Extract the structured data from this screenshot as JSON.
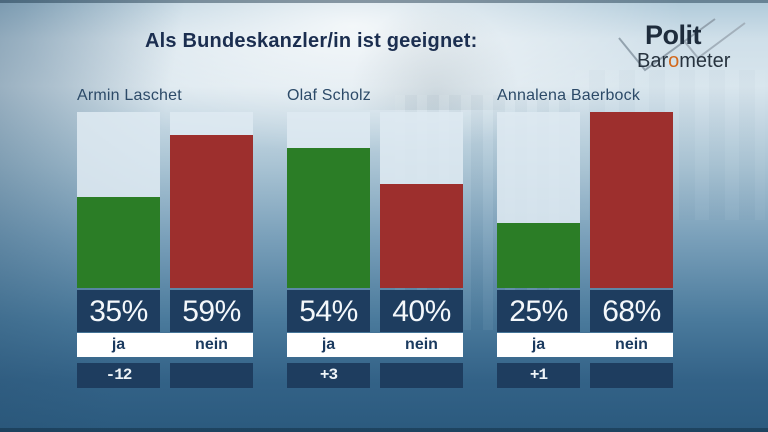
{
  "header": {
    "title": "Als Bundeskanzler/in ist geeignet:"
  },
  "logo": {
    "line1": "Polit",
    "line2_pre": "Bar",
    "line2_o": "o",
    "line2_post": "meter",
    "accent_color": "#d2691e",
    "check_color": "#93a2ae"
  },
  "chart_data": {
    "type": "bar",
    "title": "Als Bundeskanzler/in ist geeignet:",
    "series_labels": [
      "ja",
      "nein"
    ],
    "unit": "%",
    "scale_max_percent": 68,
    "ylim": [
      0,
      68
    ],
    "groups": [
      {
        "name": "Armin Laschet",
        "values": {
          "ja": 35,
          "nein": 59
        },
        "labels": {
          "ja": "35%",
          "nein": "59%"
        },
        "change_label": "-12"
      },
      {
        "name": "Olaf Scholz",
        "values": {
          "ja": 54,
          "nein": 40
        },
        "labels": {
          "ja": "54%",
          "nein": "40%"
        },
        "change_label": "+3"
      },
      {
        "name": "Annalena Baerbock",
        "values": {
          "ja": 25,
          "nein": 68
        },
        "labels": {
          "ja": "25%",
          "nein": "68%"
        },
        "change_label": "+1"
      }
    ],
    "colors": {
      "ja_bar": "#2b7d26",
      "nein_bar": "#9d2f2d",
      "value_box": "#1e3d5f",
      "change_box": "#1e3d5f",
      "label_strip": "#ffffff",
      "label_text": "#1b3a5f"
    }
  }
}
